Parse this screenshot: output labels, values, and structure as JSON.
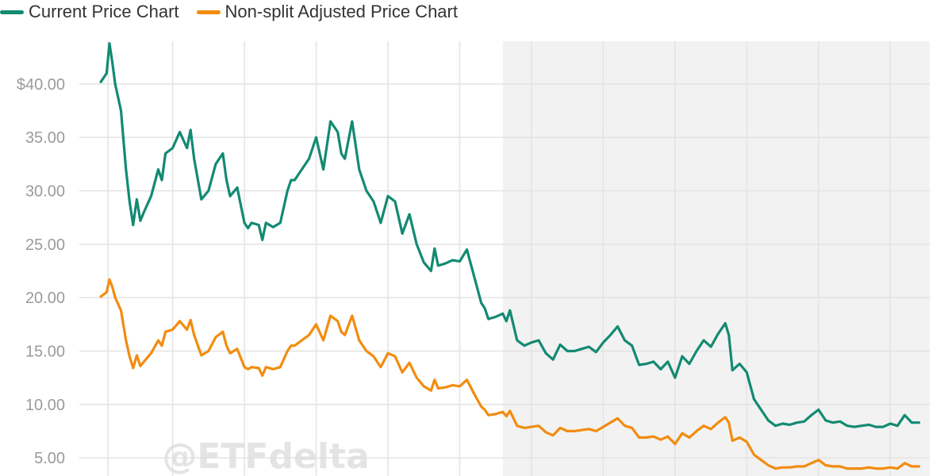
{
  "legend": [
    {
      "label": "Current Price Chart",
      "color": "#138a72"
    },
    {
      "label": "Non-split Adjusted Price Chart",
      "color": "#f28c0f"
    }
  ],
  "watermark": "@ETFdelta",
  "chart_data": {
    "type": "line",
    "title": "",
    "xlabel": "",
    "ylabel": "",
    "ylim": [
      3.3,
      44.0
    ],
    "y_ticks": [
      5,
      10,
      15,
      20,
      25,
      30,
      35,
      40
    ],
    "y_tick_labels": [
      "5.00",
      "10.00",
      "15.00",
      "20.00",
      "25.00",
      "30.00",
      "35.00",
      "$40.00"
    ],
    "x_ticks": [
      0.1,
      1.0,
      2.0,
      3.0,
      4.0,
      5.0,
      6.0,
      7.0,
      8.0,
      9.0,
      10.0,
      11.0
    ],
    "x_range": [
      -0.3,
      11.55
    ],
    "shaded_region_x": [
      5.6,
      11.55
    ],
    "grid": true,
    "legend_position": "top-left",
    "series": [
      {
        "name": "Current Price Chart",
        "color": "#138a72",
        "x": [
          0.0,
          0.08,
          0.12,
          0.16,
          0.2,
          0.28,
          0.35,
          0.4,
          0.45,
          0.5,
          0.55,
          0.6,
          0.7,
          0.8,
          0.85,
          0.9,
          1.0,
          1.1,
          1.2,
          1.25,
          1.3,
          1.4,
          1.5,
          1.6,
          1.7,
          1.75,
          1.8,
          1.9,
          2.0,
          2.05,
          2.1,
          2.2,
          2.25,
          2.3,
          2.4,
          2.5,
          2.6,
          2.65,
          2.7,
          2.8,
          2.9,
          3.0,
          3.1,
          3.2,
          3.3,
          3.35,
          3.4,
          3.5,
          3.6,
          3.7,
          3.8,
          3.9,
          4.0,
          4.1,
          4.2,
          4.3,
          4.4,
          4.5,
          4.6,
          4.65,
          4.7,
          4.8,
          4.9,
          5.0,
          5.1,
          5.2,
          5.3,
          5.35,
          5.4,
          5.5,
          5.6,
          5.65,
          5.7,
          5.8,
          5.9,
          6.0,
          6.1,
          6.2,
          6.3,
          6.4,
          6.5,
          6.6,
          6.7,
          6.8,
          6.9,
          7.0,
          7.1,
          7.2,
          7.3,
          7.4,
          7.5,
          7.6,
          7.7,
          7.8,
          7.9,
          8.0,
          8.1,
          8.2,
          8.3,
          8.4,
          8.5,
          8.6,
          8.7,
          8.75,
          8.8,
          8.9,
          9.0,
          9.1,
          9.2,
          9.3,
          9.4,
          9.5,
          9.6,
          9.7,
          9.8,
          9.9,
          10.0,
          10.1,
          10.2,
          10.3,
          10.4,
          10.5,
          10.6,
          10.7,
          10.8,
          10.9,
          11.0,
          11.1,
          11.2,
          11.3,
          11.4
        ],
        "values": [
          40.2,
          41.0,
          43.8,
          42.0,
          40.0,
          37.5,
          32.0,
          29.0,
          26.8,
          29.2,
          27.2,
          28.0,
          29.5,
          32.0,
          31.0,
          33.5,
          34.0,
          35.5,
          34.0,
          35.7,
          33.0,
          29.2,
          30.0,
          32.5,
          33.5,
          31.0,
          29.5,
          30.3,
          27.0,
          26.5,
          27.0,
          26.8,
          25.4,
          27.0,
          26.6,
          27.0,
          30.0,
          31.0,
          31.0,
          32.0,
          33.0,
          35.0,
          32.0,
          36.5,
          35.5,
          33.5,
          33.0,
          36.5,
          32.0,
          30.0,
          29.0,
          27.0,
          29.5,
          29.0,
          26.0,
          27.8,
          25.0,
          23.3,
          22.5,
          24.6,
          23.0,
          23.2,
          23.5,
          23.4,
          24.5,
          22.0,
          19.5,
          19.0,
          18.0,
          18.2,
          18.5,
          17.8,
          18.8,
          16.0,
          15.5,
          15.8,
          16.0,
          14.8,
          14.2,
          15.6,
          15.0,
          15.0,
          15.2,
          15.4,
          14.9,
          15.8,
          16.5,
          17.3,
          16.0,
          15.5,
          13.7,
          13.8,
          14.0,
          13.3,
          14.0,
          12.5,
          14.5,
          13.8,
          15.0,
          16.0,
          15.4,
          16.6,
          17.6,
          16.5,
          13.2,
          13.8,
          13.0,
          10.5,
          9.5,
          8.5,
          8.0,
          8.2,
          8.1,
          8.3,
          8.4,
          9.0,
          9.5,
          8.5,
          8.3,
          8.4,
          8.0,
          7.9,
          8.0,
          8.1,
          7.9,
          7.9,
          8.2,
          8.0,
          9.0,
          8.3,
          8.3
        ],
        "labels": []
      },
      {
        "name": "Non-split Adjusted Price Chart",
        "color": "#f28c0f",
        "x": [
          0.0,
          0.08,
          0.12,
          0.16,
          0.2,
          0.28,
          0.35,
          0.4,
          0.45,
          0.5,
          0.55,
          0.6,
          0.7,
          0.8,
          0.85,
          0.9,
          1.0,
          1.1,
          1.2,
          1.25,
          1.3,
          1.4,
          1.5,
          1.6,
          1.7,
          1.75,
          1.8,
          1.9,
          2.0,
          2.05,
          2.1,
          2.2,
          2.25,
          2.3,
          2.4,
          2.5,
          2.6,
          2.65,
          2.7,
          2.8,
          2.9,
          3.0,
          3.1,
          3.2,
          3.3,
          3.35,
          3.4,
          3.5,
          3.6,
          3.7,
          3.8,
          3.9,
          4.0,
          4.1,
          4.2,
          4.3,
          4.4,
          4.5,
          4.6,
          4.65,
          4.7,
          4.8,
          4.9,
          5.0,
          5.1,
          5.2,
          5.3,
          5.35,
          5.4,
          5.5,
          5.6,
          5.65,
          5.7,
          5.8,
          5.9,
          6.0,
          6.1,
          6.2,
          6.3,
          6.4,
          6.5,
          6.6,
          6.7,
          6.8,
          6.9,
          7.0,
          7.1,
          7.2,
          7.3,
          7.4,
          7.5,
          7.6,
          7.7,
          7.8,
          7.9,
          8.0,
          8.1,
          8.2,
          8.3,
          8.4,
          8.5,
          8.6,
          8.7,
          8.75,
          8.8,
          8.9,
          9.0,
          9.1,
          9.2,
          9.3,
          9.4,
          9.5,
          9.6,
          9.7,
          9.8,
          9.9,
          10.0,
          10.1,
          10.2,
          10.3,
          10.4,
          10.5,
          10.6,
          10.7,
          10.8,
          10.9,
          11.0,
          11.1,
          11.2,
          11.3,
          11.4
        ],
        "values": [
          20.1,
          20.5,
          21.7,
          21.0,
          20.0,
          18.8,
          16.0,
          14.5,
          13.4,
          14.6,
          13.6,
          14.0,
          14.8,
          16.0,
          15.5,
          16.8,
          17.0,
          17.8,
          17.0,
          17.9,
          16.5,
          14.6,
          15.0,
          16.3,
          16.8,
          15.5,
          14.8,
          15.2,
          13.5,
          13.3,
          13.5,
          13.4,
          12.7,
          13.5,
          13.3,
          13.5,
          15.0,
          15.5,
          15.5,
          16.0,
          16.5,
          17.5,
          16.0,
          18.3,
          17.8,
          16.8,
          16.5,
          18.3,
          16.0,
          15.0,
          14.5,
          13.5,
          14.8,
          14.5,
          13.0,
          13.9,
          12.5,
          11.7,
          11.3,
          12.3,
          11.5,
          11.6,
          11.8,
          11.7,
          12.3,
          11.0,
          9.8,
          9.5,
          9.0,
          9.1,
          9.3,
          8.9,
          9.4,
          8.0,
          7.8,
          7.9,
          8.0,
          7.4,
          7.1,
          7.8,
          7.5,
          7.5,
          7.6,
          7.7,
          7.5,
          7.9,
          8.3,
          8.7,
          8.0,
          7.8,
          6.9,
          6.9,
          7.0,
          6.7,
          7.0,
          6.3,
          7.3,
          6.9,
          7.5,
          8.0,
          7.7,
          8.3,
          8.8,
          8.3,
          6.6,
          6.9,
          6.5,
          5.3,
          4.8,
          4.3,
          4.0,
          4.1,
          4.1,
          4.2,
          4.2,
          4.5,
          4.8,
          4.3,
          4.2,
          4.2,
          4.0,
          4.0,
          4.0,
          4.1,
          4.0,
          4.0,
          4.1,
          4.0,
          4.5,
          4.2,
          4.2
        ],
        "labels": []
      }
    ]
  }
}
